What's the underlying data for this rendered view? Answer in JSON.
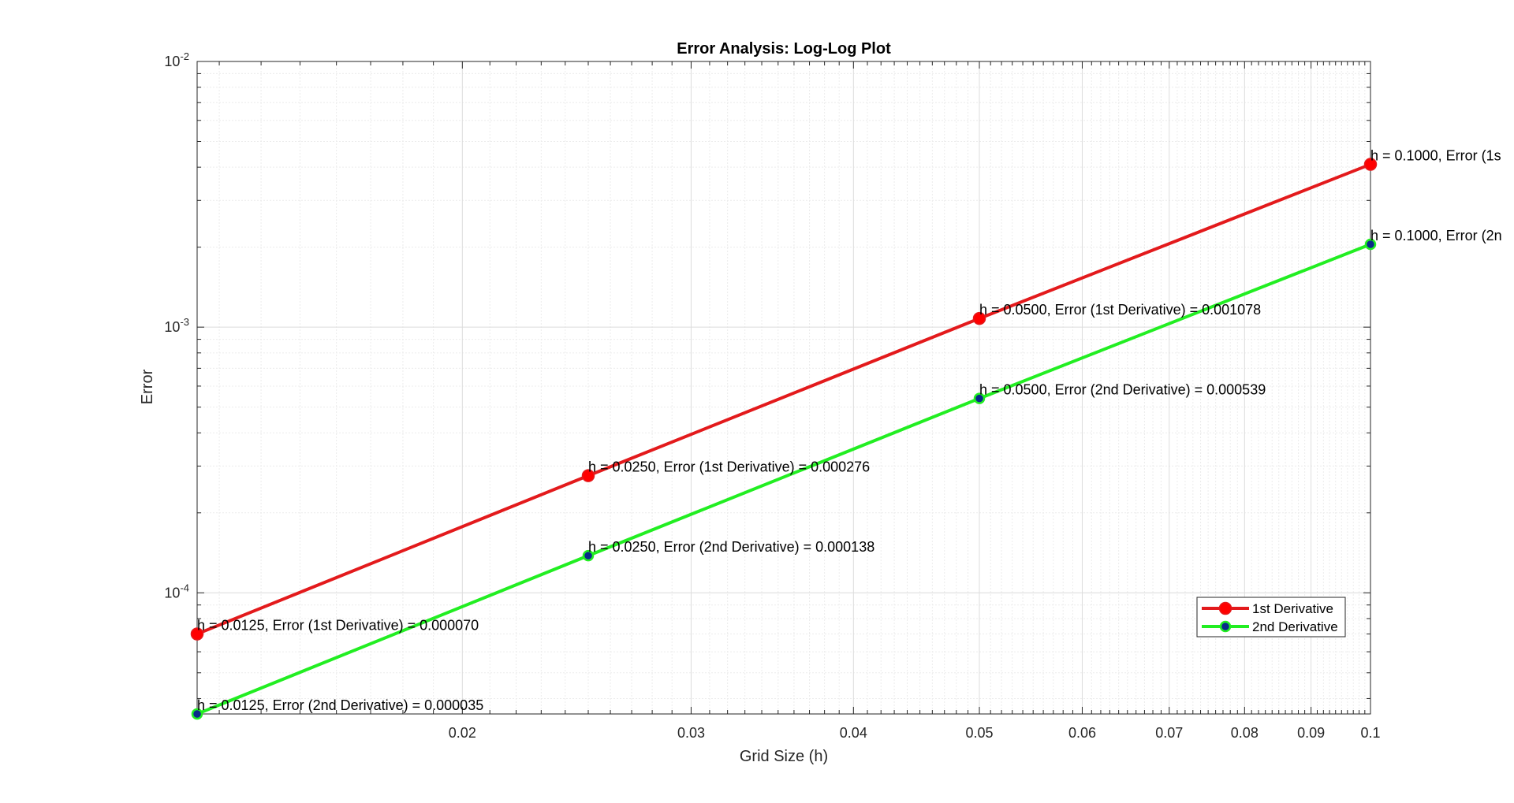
{
  "chart_data": {
    "type": "line",
    "title": "Error Analysis: Log-Log Plot",
    "xlabel": "Grid Size (h)",
    "ylabel": "Error",
    "xscale": "log",
    "yscale": "log",
    "xlim": [
      0.0125,
      0.1
    ],
    "ylim": [
      3.5e-05,
      0.01
    ],
    "xticks": [
      {
        "value": 0.02,
        "label": "0.02"
      },
      {
        "value": 0.03,
        "label": "0.03"
      },
      {
        "value": 0.04,
        "label": "0.04"
      },
      {
        "value": 0.05,
        "label": "0.05"
      },
      {
        "value": 0.06,
        "label": "0.06"
      },
      {
        "value": 0.07,
        "label": "0.07"
      },
      {
        "value": 0.08,
        "label": "0.08"
      },
      {
        "value": 0.09,
        "label": "0.09"
      },
      {
        "value": 0.1,
        "label": "0.1"
      }
    ],
    "yticks": [
      {
        "value": 0.0001,
        "base": "10",
        "exp": "-4"
      },
      {
        "value": 0.001,
        "base": "10",
        "exp": "-3"
      },
      {
        "value": 0.01,
        "base": "10",
        "exp": "-2"
      }
    ],
    "grid": true,
    "minor_grid": true,
    "legend_position": "bottom-right",
    "series": [
      {
        "name": "1st Derivative",
        "color": "#e31a1c",
        "marker_face": "#ff0000",
        "x": [
          0.0125,
          0.025,
          0.05,
          0.1
        ],
        "y": [
          7e-05,
          0.000276,
          0.001078,
          0.0041
        ],
        "labels": [
          "h = 0.0125, Error (1st Derivative) = 0.000070",
          "h = 0.0250, Error (1st Derivative) = 0.000276",
          "h = 0.0500, Error (1st Derivative) = 0.001078",
          "h = 0.1000, Error (1s"
        ]
      },
      {
        "name": "2nd Derivative",
        "color": "#22ee22",
        "marker_face": "#0a2a8a",
        "x": [
          0.0125,
          0.025,
          0.05,
          0.1
        ],
        "y": [
          3.5e-05,
          0.000138,
          0.000539,
          0.00205
        ],
        "labels": [
          "h = 0.0125, Error (2nd Derivative) = 0.000035",
          "h = 0.0250, Error (2nd Derivative) = 0.000138",
          "h = 0.0500, Error (2nd Derivative) = 0.000539",
          "h = 0.1000, Error (2n"
        ]
      }
    ]
  }
}
